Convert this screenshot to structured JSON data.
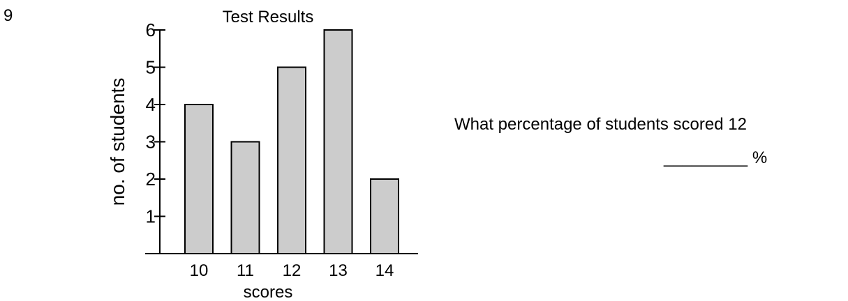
{
  "question": {
    "number": "9",
    "text": "What percentage of students scored 12",
    "answer_blank": "_________",
    "answer_unit": "%"
  },
  "chart_data": {
    "type": "bar",
    "title": "Test Results",
    "xlabel": "scores",
    "ylabel": "no. of students",
    "categories": [
      "10",
      "11",
      "12",
      "13",
      "14"
    ],
    "values": [
      4,
      3,
      5,
      6,
      2
    ],
    "yticks": [
      "1",
      "2",
      "3",
      "4",
      "5",
      "6"
    ],
    "ylim": [
      0,
      6
    ],
    "grid": false,
    "bar_fill": "#cccccc",
    "bar_stroke": "#000000"
  }
}
